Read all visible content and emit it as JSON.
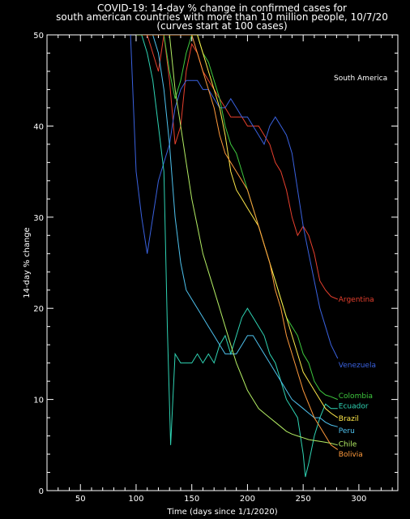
{
  "chart_data": {
    "type": "line",
    "title": [
      "COVID-19: 14-day % change in confirmed cases for",
      "south american countries with more than 10 million people, 10/7/20",
      "(curves start at 100 cases)"
    ],
    "xlabel": "Time (days since 1/1/2020)",
    "ylabel": "14-day % change",
    "xlim": [
      20,
      335
    ],
    "ylim": [
      0,
      50
    ],
    "xticks": [
      50,
      100,
      150,
      200,
      250,
      300
    ],
    "yticks": [
      0,
      10,
      20,
      30,
      40,
      50
    ],
    "annotation": "South America",
    "series": [
      {
        "name": "Argentina",
        "color": "#e8402e",
        "x": [
          105,
          110,
          115,
          120,
          125,
          130,
          135,
          140,
          145,
          150,
          155,
          160,
          165,
          170,
          175,
          180,
          185,
          190,
          195,
          200,
          205,
          210,
          215,
          220,
          225,
          230,
          235,
          240,
          245,
          250,
          255,
          260,
          265,
          270,
          275,
          281
        ],
        "y": [
          50,
          50,
          48,
          46,
          50,
          45,
          38,
          40,
          46,
          49,
          48,
          46,
          45,
          44,
          43,
          42,
          41,
          41,
          41,
          40,
          40,
          40,
          39,
          38,
          36,
          35,
          33,
          30,
          28,
          29,
          28,
          26,
          23,
          22,
          21.3,
          21
        ]
      },
      {
        "name": "Venezuela",
        "color": "#3a62e0",
        "x": [
          95,
          100,
          105,
          110,
          115,
          120,
          125,
          130,
          135,
          140,
          145,
          150,
          155,
          160,
          165,
          170,
          175,
          180,
          185,
          190,
          195,
          200,
          205,
          210,
          215,
          220,
          225,
          230,
          235,
          240,
          245,
          250,
          255,
          260,
          265,
          270,
          275,
          281
        ],
        "y": [
          50,
          35,
          30,
          26,
          30,
          34,
          36,
          38,
          42,
          44,
          45,
          45,
          45,
          44,
          44,
          43,
          42,
          42,
          43,
          42,
          41,
          41,
          40,
          39,
          38,
          40,
          41,
          40,
          39,
          37,
          33,
          29,
          26,
          23,
          20,
          18,
          16,
          14.5
        ]
      },
      {
        "name": "Colombia",
        "color": "#3ec93e",
        "x": [
          100,
          105,
          110,
          115,
          120,
          125,
          130,
          135,
          140,
          145,
          150,
          155,
          160,
          165,
          170,
          175,
          180,
          185,
          190,
          195,
          200,
          205,
          210,
          215,
          220,
          225,
          230,
          235,
          240,
          245,
          250,
          255,
          260,
          265,
          270,
          275,
          281
        ],
        "y": [
          50,
          50,
          50,
          50,
          50,
          50,
          46,
          43,
          45,
          48,
          50,
          50,
          48,
          47,
          45,
          43,
          40,
          38,
          37,
          35,
          33,
          31,
          29,
          27,
          25,
          23,
          21,
          19,
          18,
          17,
          15,
          14,
          12,
          11,
          10.5,
          10.3,
          10
        ]
      },
      {
        "name": "Ecuador",
        "color": "#2fd4b4",
        "x": [
          105,
          110,
          115,
          120,
          125,
          128,
          131,
          135,
          140,
          145,
          150,
          155,
          160,
          165,
          170,
          175,
          180,
          185,
          190,
          195,
          200,
          205,
          210,
          215,
          220,
          225,
          230,
          235,
          240,
          245,
          250,
          252,
          255,
          260,
          265,
          270,
          275,
          281
        ],
        "y": [
          50,
          48,
          45,
          40,
          35,
          18,
          5,
          15,
          14,
          14,
          14,
          15,
          14,
          15,
          14,
          16,
          17,
          15,
          17,
          19,
          20,
          19,
          18,
          17,
          15,
          14,
          12,
          10,
          9,
          8,
          4,
          1.5,
          3,
          6,
          8,
          9.5,
          9,
          9
        ]
      },
      {
        "name": "Brazil",
        "color": "#ffe94a",
        "x": [
          130,
          135,
          140,
          145,
          150,
          155,
          160,
          165,
          170,
          175,
          180,
          185,
          190,
          195,
          200,
          205,
          210,
          215,
          220,
          225,
          230,
          235,
          240,
          245,
          250,
          255,
          260,
          265,
          270,
          275,
          281
        ],
        "y": [
          50,
          50,
          50,
          50,
          50,
          50,
          48,
          46,
          44,
          42,
          39,
          35,
          33,
          32,
          31,
          30,
          29,
          27,
          25,
          23,
          21,
          19,
          17,
          15,
          13,
          12,
          11,
          10,
          9,
          8.5,
          8
        ]
      },
      {
        "name": "Peru",
        "color": "#4ec2ee",
        "x": [
          110,
          115,
          120,
          125,
          130,
          135,
          140,
          145,
          150,
          155,
          160,
          165,
          170,
          175,
          180,
          185,
          190,
          195,
          200,
          205,
          210,
          215,
          220,
          225,
          230,
          235,
          240,
          245,
          250,
          255,
          260,
          265,
          270,
          275,
          281
        ],
        "y": [
          50,
          50,
          48,
          44,
          38,
          30,
          25,
          22,
          21,
          20,
          19,
          18,
          17,
          16,
          15,
          15,
          15,
          16,
          17,
          17,
          16,
          15,
          14,
          13,
          12,
          11,
          10,
          9.5,
          9,
          8.5,
          8,
          8,
          7.5,
          7.2,
          7
        ]
      },
      {
        "name": "Chile",
        "color": "#b4ee64",
        "x": [
          100,
          105,
          110,
          115,
          120,
          125,
          130,
          135,
          140,
          145,
          150,
          155,
          160,
          165,
          170,
          175,
          180,
          185,
          190,
          195,
          200,
          205,
          210,
          215,
          220,
          225,
          230,
          235,
          240,
          245,
          250,
          255,
          260,
          265,
          270,
          275,
          281
        ],
        "y": [
          50,
          50,
          50,
          50,
          50,
          50,
          50,
          44,
          40,
          36,
          32,
          29,
          26,
          24,
          22,
          20,
          18,
          16,
          14,
          12.5,
          11,
          10,
          9,
          8.5,
          8,
          7.5,
          7,
          6.5,
          6.2,
          6,
          5.8,
          5.6,
          5.5,
          5.4,
          5.3,
          5.2,
          5
        ]
      },
      {
        "name": "Bolivia",
        "color": "#ff9a3c",
        "x": [
          105,
          110,
          115,
          120,
          125,
          130,
          135,
          140,
          145,
          150,
          155,
          160,
          165,
          170,
          175,
          180,
          185,
          190,
          195,
          200,
          205,
          210,
          215,
          220,
          225,
          230,
          235,
          240,
          245,
          250,
          255,
          260,
          265,
          270,
          275,
          281
        ],
        "y": [
          50,
          50,
          50,
          50,
          50,
          50,
          50,
          50,
          50,
          50,
          48,
          46,
          44,
          42,
          39,
          37,
          36,
          35,
          34,
          33,
          31,
          29,
          27,
          25,
          22,
          20,
          17,
          15,
          13,
          11,
          9.5,
          8,
          7,
          6,
          5,
          4.5
        ]
      }
    ]
  }
}
